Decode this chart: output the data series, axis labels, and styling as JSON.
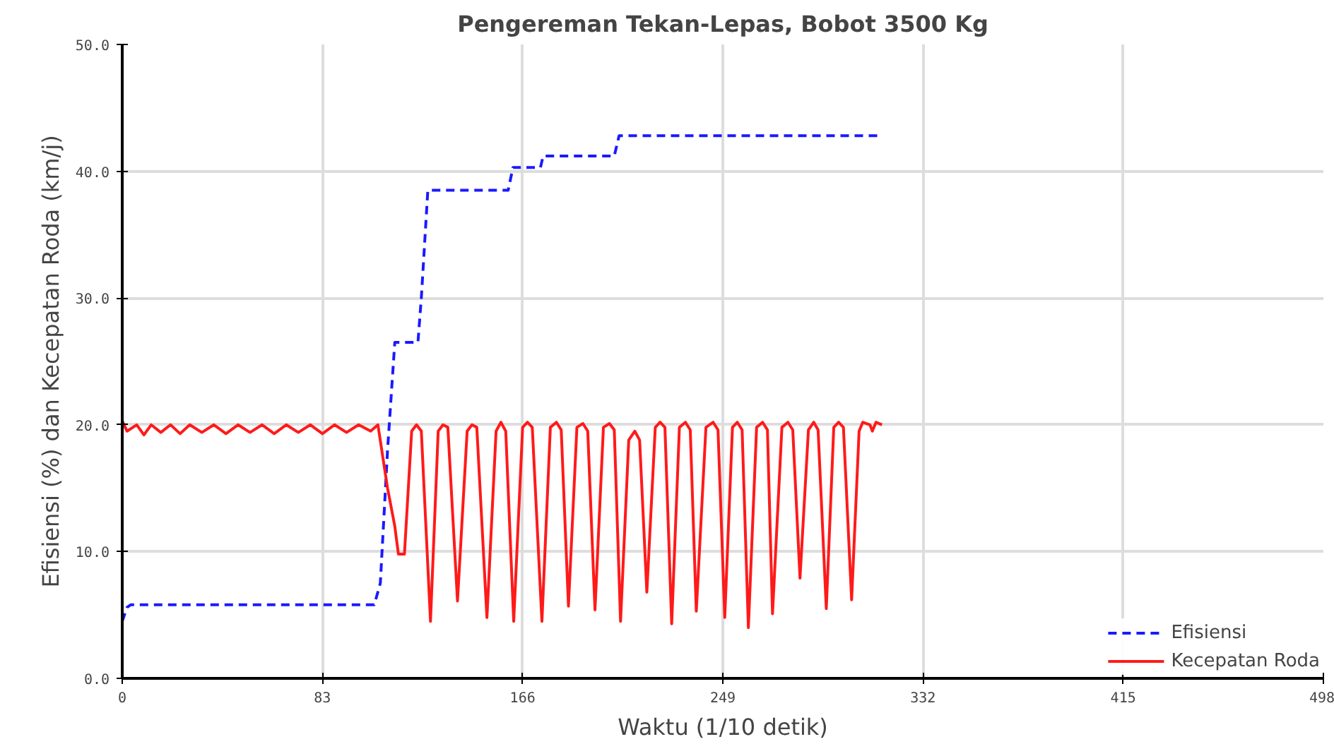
{
  "chart_data": {
    "type": "line",
    "title": "Pengereman Tekan-Lepas, Bobot 3500 Kg",
    "xlabel": "Waktu (1/10 detik)",
    "ylabel": "Efisiensi (%) dan Kecepatan Roda (km/j)",
    "xlim": [
      0,
      498
    ],
    "xticks": [
      0,
      83,
      166,
      249,
      332,
      415,
      498
    ],
    "ylim": [
      0,
      50
    ],
    "yticks": [
      {
        "value": 0,
        "label": "0.0"
      },
      {
        "value": 10,
        "label": "10.0"
      },
      {
        "value": 20,
        "label": "20.0"
      },
      {
        "value": 30,
        "label": "30.0"
      },
      {
        "value": 40,
        "label": "40.0"
      },
      {
        "value": 50,
        "label": "50.0"
      }
    ],
    "grid": true,
    "legend": "bottom right",
    "marker": "none",
    "series": [
      {
        "name": "Efisiensi",
        "color": "#1a1aff",
        "line_style": "dashed",
        "x": [
          0,
          2,
          3.5,
          104.5,
          107,
          110,
          113,
          122.6,
          124,
          126.7,
          160,
          162,
          173.4,
          174.5,
          204,
          206,
          313.5
        ],
        "values": [
          4.5,
          5.6,
          5.8,
          5.8,
          7.5,
          18,
          26.5,
          26.5,
          30,
          38.5,
          38.5,
          40.3,
          40.3,
          41.2,
          41.2,
          42.8,
          42.8
        ]
      },
      {
        "name": "Kecepatan Roda",
        "color": "#ff1a1a",
        "line_style": "solid",
        "x": [
          0,
          2,
          6,
          9,
          12,
          16,
          20,
          24,
          28,
          33,
          38,
          43,
          48,
          53,
          58,
          63,
          68,
          73,
          78,
          83,
          88,
          93,
          98,
          103,
          106,
          110,
          113,
          114.5,
          117,
          120,
          122,
          124,
          127.8,
          131,
          133,
          135,
          139,
          143,
          145,
          147,
          151.2,
          155,
          157,
          159,
          162.3,
          166,
          168,
          170,
          174,
          177.5,
          180,
          182,
          185,
          188.5,
          191,
          193,
          196,
          199.5,
          202,
          204,
          206.6,
          210,
          212.5,
          214.5,
          217.5,
          221,
          223,
          225,
          227.8,
          231,
          233.5,
          235.5,
          238,
          242,
          245,
          247,
          249.8,
          253,
          255,
          257,
          259.6,
          263,
          265.5,
          267.5,
          269.6,
          273.5,
          276,
          278,
          281,
          284.5,
          286.7,
          288.5,
          291.9,
          295,
          297,
          299,
          302.4,
          305.5,
          307,
          310,
          311,
          312.5,
          315
        ],
        "values": [
          20.3,
          19.5,
          20,
          19.2,
          20,
          19.4,
          20,
          19.3,
          20,
          19.4,
          20,
          19.3,
          20,
          19.4,
          20,
          19.3,
          20,
          19.4,
          20,
          19.3,
          20,
          19.4,
          20,
          19.5,
          20,
          15,
          12,
          9.8,
          9.8,
          19.5,
          20,
          19.5,
          4.5,
          19.5,
          20,
          19.8,
          6.1,
          19.5,
          20,
          19.8,
          4.8,
          19.5,
          20.2,
          19.5,
          4.5,
          19.8,
          20.2,
          19.8,
          4.5,
          19.8,
          20.2,
          19.6,
          5.7,
          19.8,
          20.1,
          19.5,
          5.4,
          19.8,
          20.1,
          19.6,
          4.5,
          18.8,
          19.5,
          18.8,
          6.8,
          19.8,
          20.2,
          19.8,
          4.3,
          19.8,
          20.2,
          19.6,
          5.3,
          19.8,
          20.2,
          19.6,
          4.8,
          19.8,
          20.2,
          19.6,
          4.0,
          19.8,
          20.2,
          19.6,
          5.1,
          19.8,
          20.2,
          19.6,
          7.9,
          19.6,
          20.2,
          19.6,
          5.5,
          19.8,
          20.2,
          19.8,
          6.2,
          19.5,
          20.2,
          20,
          19.5,
          20.2,
          20
        ]
      }
    ]
  }
}
